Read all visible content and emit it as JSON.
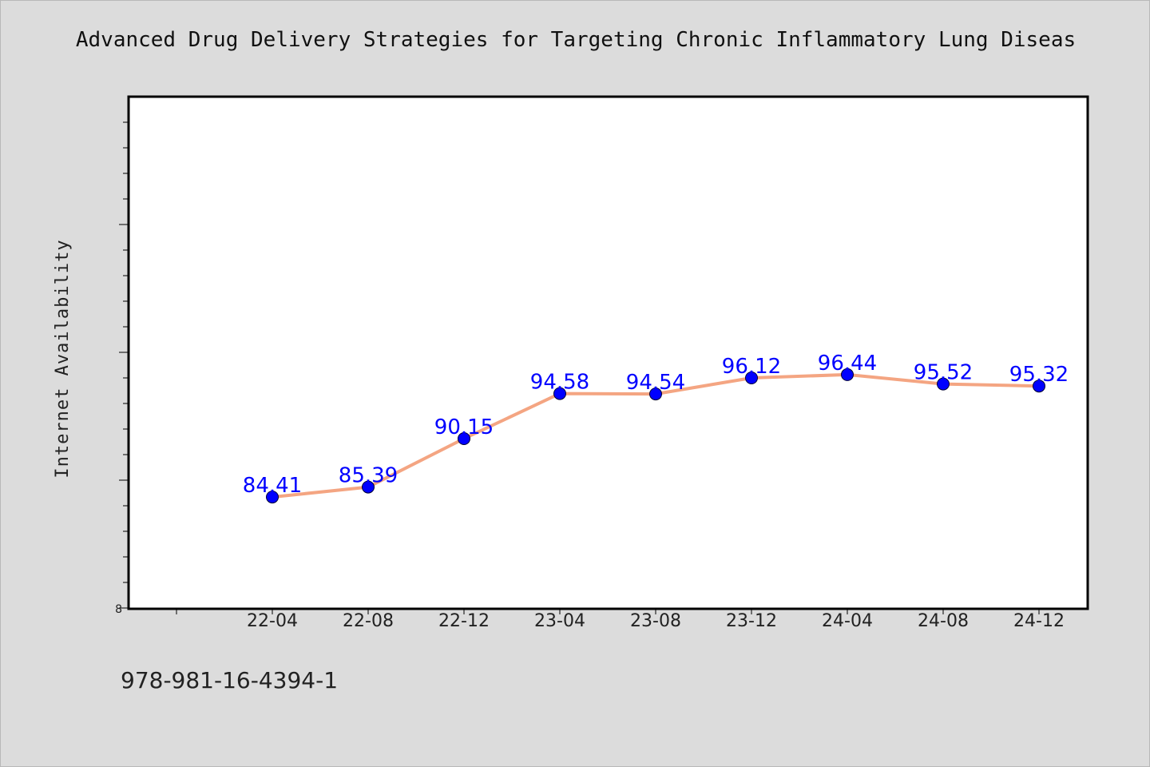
{
  "chart_data": {
    "type": "line",
    "title": "Advanced Drug Delivery Strategies for Targeting Chronic Inflammatory Lung Diseas",
    "xlabel": "",
    "ylabel": "Internet Availability",
    "categories": [
      "22-04",
      "22-08",
      "22-12",
      "23-04",
      "23-08",
      "23-12",
      "24-04",
      "24-08",
      "24-12"
    ],
    "series": [
      {
        "values": [
          84.41,
          85.39,
          90.15,
          94.58,
          94.54,
          96.12,
          96.44,
          95.52,
          95.32
        ]
      }
    ],
    "y_tick_label": "8",
    "line_color": "#f4a582",
    "marker_color": "#0000ff",
    "label_color": "#0000ff",
    "grid": false,
    "legend": "none"
  },
  "footer": {
    "identifier": "978-981-16-4394-1"
  }
}
